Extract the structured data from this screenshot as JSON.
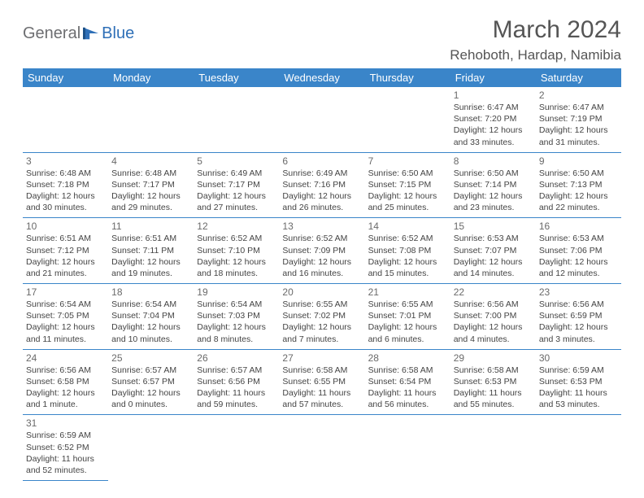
{
  "logo": {
    "part1": "General",
    "part2": "Blue"
  },
  "title": "March 2024",
  "location": "Rehoboth, Hardap, Namibia",
  "dayHeaders": [
    "Sunday",
    "Monday",
    "Tuesday",
    "Wednesday",
    "Thursday",
    "Friday",
    "Saturday"
  ],
  "colors": {
    "headerBg": "#3a85c9",
    "headerText": "#ffffff",
    "titleColor": "#555555",
    "logoGray": "#6d6e71",
    "logoBlue": "#2e6fb7",
    "cellBorder": "#3a85c9",
    "dayNumColor": "#6a6a6a",
    "infoColor": "#444444"
  },
  "weeks": [
    [
      null,
      null,
      null,
      null,
      null,
      {
        "n": "1",
        "sr": "6:47 AM",
        "ss": "7:20 PM",
        "dl": "12 hours and 33 minutes."
      },
      {
        "n": "2",
        "sr": "6:47 AM",
        "ss": "7:19 PM",
        "dl": "12 hours and 31 minutes."
      }
    ],
    [
      {
        "n": "3",
        "sr": "6:48 AM",
        "ss": "7:18 PM",
        "dl": "12 hours and 30 minutes."
      },
      {
        "n": "4",
        "sr": "6:48 AM",
        "ss": "7:17 PM",
        "dl": "12 hours and 29 minutes."
      },
      {
        "n": "5",
        "sr": "6:49 AM",
        "ss": "7:17 PM",
        "dl": "12 hours and 27 minutes."
      },
      {
        "n": "6",
        "sr": "6:49 AM",
        "ss": "7:16 PM",
        "dl": "12 hours and 26 minutes."
      },
      {
        "n": "7",
        "sr": "6:50 AM",
        "ss": "7:15 PM",
        "dl": "12 hours and 25 minutes."
      },
      {
        "n": "8",
        "sr": "6:50 AM",
        "ss": "7:14 PM",
        "dl": "12 hours and 23 minutes."
      },
      {
        "n": "9",
        "sr": "6:50 AM",
        "ss": "7:13 PM",
        "dl": "12 hours and 22 minutes."
      }
    ],
    [
      {
        "n": "10",
        "sr": "6:51 AM",
        "ss": "7:12 PM",
        "dl": "12 hours and 21 minutes."
      },
      {
        "n": "11",
        "sr": "6:51 AM",
        "ss": "7:11 PM",
        "dl": "12 hours and 19 minutes."
      },
      {
        "n": "12",
        "sr": "6:52 AM",
        "ss": "7:10 PM",
        "dl": "12 hours and 18 minutes."
      },
      {
        "n": "13",
        "sr": "6:52 AM",
        "ss": "7:09 PM",
        "dl": "12 hours and 16 minutes."
      },
      {
        "n": "14",
        "sr": "6:52 AM",
        "ss": "7:08 PM",
        "dl": "12 hours and 15 minutes."
      },
      {
        "n": "15",
        "sr": "6:53 AM",
        "ss": "7:07 PM",
        "dl": "12 hours and 14 minutes."
      },
      {
        "n": "16",
        "sr": "6:53 AM",
        "ss": "7:06 PM",
        "dl": "12 hours and 12 minutes."
      }
    ],
    [
      {
        "n": "17",
        "sr": "6:54 AM",
        "ss": "7:05 PM",
        "dl": "12 hours and 11 minutes."
      },
      {
        "n": "18",
        "sr": "6:54 AM",
        "ss": "7:04 PM",
        "dl": "12 hours and 10 minutes."
      },
      {
        "n": "19",
        "sr": "6:54 AM",
        "ss": "7:03 PM",
        "dl": "12 hours and 8 minutes."
      },
      {
        "n": "20",
        "sr": "6:55 AM",
        "ss": "7:02 PM",
        "dl": "12 hours and 7 minutes."
      },
      {
        "n": "21",
        "sr": "6:55 AM",
        "ss": "7:01 PM",
        "dl": "12 hours and 6 minutes."
      },
      {
        "n": "22",
        "sr": "6:56 AM",
        "ss": "7:00 PM",
        "dl": "12 hours and 4 minutes."
      },
      {
        "n": "23",
        "sr": "6:56 AM",
        "ss": "6:59 PM",
        "dl": "12 hours and 3 minutes."
      }
    ],
    [
      {
        "n": "24",
        "sr": "6:56 AM",
        "ss": "6:58 PM",
        "dl": "12 hours and 1 minute."
      },
      {
        "n": "25",
        "sr": "6:57 AM",
        "ss": "6:57 PM",
        "dl": "12 hours and 0 minutes."
      },
      {
        "n": "26",
        "sr": "6:57 AM",
        "ss": "6:56 PM",
        "dl": "11 hours and 59 minutes."
      },
      {
        "n": "27",
        "sr": "6:58 AM",
        "ss": "6:55 PM",
        "dl": "11 hours and 57 minutes."
      },
      {
        "n": "28",
        "sr": "6:58 AM",
        "ss": "6:54 PM",
        "dl": "11 hours and 56 minutes."
      },
      {
        "n": "29",
        "sr": "6:58 AM",
        "ss": "6:53 PM",
        "dl": "11 hours and 55 minutes."
      },
      {
        "n": "30",
        "sr": "6:59 AM",
        "ss": "6:53 PM",
        "dl": "11 hours and 53 minutes."
      }
    ],
    [
      {
        "n": "31",
        "sr": "6:59 AM",
        "ss": "6:52 PM",
        "dl": "11 hours and 52 minutes."
      },
      null,
      null,
      null,
      null,
      null,
      null
    ]
  ],
  "labels": {
    "sunrise": "Sunrise:",
    "sunset": "Sunset:",
    "daylight": "Daylight:"
  }
}
